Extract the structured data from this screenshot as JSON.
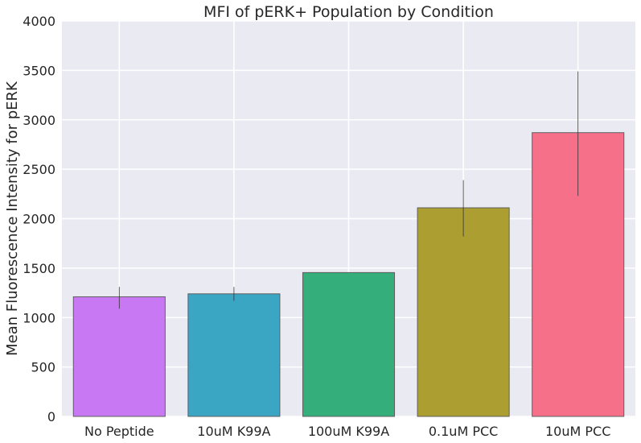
{
  "chart_data": {
    "type": "bar",
    "title": "MFI of pERK+ Population by Condition",
    "xlabel": "",
    "ylabel": "Mean Fluorescence Intensity for pERK",
    "categories": [
      "No Peptide",
      "10uM K99A",
      "100uM K99A",
      "0.1uM PCC",
      "10uM PCC"
    ],
    "values": [
      1210,
      1240,
      1455,
      2110,
      2870
    ],
    "error_low": [
      1090,
      1170,
      1455,
      1820,
      2230
    ],
    "error_high": [
      1310,
      1310,
      1455,
      2390,
      3490
    ],
    "colors": [
      "#c878f3",
      "#3aa6c4",
      "#34af7b",
      "#ad9e31",
      "#f77089"
    ],
    "ylim": [
      0,
      4000
    ],
    "yticks": [
      "0",
      "500",
      "1000",
      "1500",
      "2000",
      "2500",
      "3000",
      "3500",
      "4000"
    ],
    "grid": true,
    "background": "#eaeaf2",
    "grid_color": "#ffffff",
    "bar_edge_color": "#5f5f5f"
  }
}
